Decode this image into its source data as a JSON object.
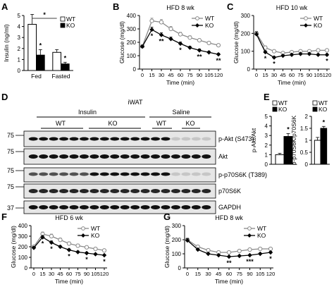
{
  "chart_data": [
    {
      "panel": "A",
      "type": "bar",
      "ylabel": "Insulin (ng/ml)",
      "ylim": [
        0,
        5
      ],
      "yticks": [
        0,
        1,
        2,
        3,
        4,
        5
      ],
      "categories": [
        "Fed",
        "Fasted"
      ],
      "series": [
        {
          "name": "WT",
          "values": [
            4.2,
            1.65
          ],
          "errors": [
            0.9,
            0.25
          ],
          "fill": "#ffffff"
        },
        {
          "name": "KO",
          "values": [
            1.4,
            0.6
          ],
          "errors": [
            0.5,
            0.15
          ],
          "fill": "#000000"
        }
      ],
      "annotations": [
        "*",
        "*",
        "*"
      ],
      "legend": "top-right"
    },
    {
      "panel": "B",
      "type": "line",
      "title": "HFD  8 wk",
      "xlabel": "Time (min)",
      "ylabel": "Glucose (mg/dl)",
      "x": [
        0,
        15,
        30,
        45,
        60,
        75,
        90,
        105,
        120
      ],
      "xticks": [
        "0",
        "15",
        "30",
        "45",
        "60",
        "75",
        "90",
        "105",
        "120"
      ],
      "ylim": [
        0,
        400
      ],
      "yticks": [
        0,
        100,
        200,
        300,
        400
      ],
      "series": [
        {
          "name": "WT",
          "values": [
            170,
            360,
            350,
            300,
            260,
            235,
            215,
            195,
            178
          ],
          "errors": [
            10,
            20,
            20,
            18,
            15,
            14,
            12,
            10,
            10
          ],
          "marker": "circle-open"
        },
        {
          "name": "KO",
          "values": [
            168,
            295,
            255,
            225,
            190,
            160,
            140,
            125,
            110
          ],
          "errors": [
            10,
            18,
            16,
            14,
            12,
            11,
            10,
            9,
            8
          ],
          "marker": "diamond"
        }
      ],
      "annotations": [
        "*",
        "**",
        "*",
        "**",
        "**"
      ],
      "legend": "top-right"
    },
    {
      "panel": "C",
      "type": "line",
      "title": "HFD 10 wk",
      "xlabel": "Time (min)",
      "ylabel": "Glucose (mg/dl)",
      "x": [
        0,
        15,
        30,
        45,
        60,
        75,
        90,
        105,
        120
      ],
      "xticks": [
        "0",
        "15",
        "30",
        "45",
        "60",
        "75",
        "90",
        "105",
        "120"
      ],
      "ylim": [
        0,
        300
      ],
      "yticks": [
        0,
        100,
        200,
        300
      ],
      "series": [
        {
          "name": "WT",
          "values": [
            200,
            120,
            100,
            90,
            95,
            100,
            100,
            105,
            105
          ],
          "errors": [
            12,
            10,
            8,
            7,
            7,
            7,
            7,
            7,
            7
          ],
          "marker": "circle-open"
        },
        {
          "name": "KO",
          "values": [
            195,
            95,
            65,
            75,
            80,
            85,
            85,
            80,
            80
          ],
          "errors": [
            12,
            8,
            6,
            6,
            6,
            6,
            6,
            6,
            6
          ],
          "marker": "diamond"
        }
      ],
      "annotations": [
        "*",
        "*",
        "*"
      ],
      "legend": "top-right"
    },
    {
      "panel": "E",
      "type": "bar",
      "ylabel": "p-Akt/Akt",
      "ylim": [
        0,
        5
      ],
      "yticks": [
        0,
        1,
        2,
        3,
        4,
        5
      ],
      "series": [
        {
          "name": "WT",
          "values": [
            1.0
          ],
          "errors": [
            0.15
          ],
          "fill": "#ffffff"
        },
        {
          "name": "KO",
          "values": [
            2.9
          ],
          "errors": [
            0.3
          ],
          "fill": "#000000"
        }
      ],
      "annotations": [
        "*"
      ],
      "legend": "top"
    },
    {
      "panel": "E2",
      "type": "bar",
      "ylabel": "p-p70S6K/p70S6K",
      "ylim": [
        0,
        2
      ],
      "yticks": [
        0,
        0.5,
        1,
        1.5,
        2
      ],
      "yticklabels": [
        "0",
        "0.5",
        "1",
        "1.5",
        "2"
      ],
      "series": [
        {
          "name": "WT",
          "values": [
            1.0
          ],
          "errors": [
            0.12
          ],
          "fill": "#ffffff"
        },
        {
          "name": "KO",
          "values": [
            1.5
          ],
          "errors": [
            0.08
          ],
          "fill": "#000000"
        }
      ],
      "annotations": [
        "*"
      ],
      "legend": "top"
    },
    {
      "panel": "F",
      "type": "line",
      "title": "HFD 6 wk",
      "xlabel": "Time (min)",
      "ylabel": "Glucose (mg/dl)",
      "x": [
        0,
        15,
        30,
        45,
        60,
        75,
        90,
        105,
        120
      ],
      "xticks": [
        "0",
        "15",
        "30",
        "45",
        "60",
        "75",
        "90",
        "105",
        "120"
      ],
      "ylim": [
        0,
        400
      ],
      "yticks": [
        0,
        100,
        200,
        300,
        400
      ],
      "series": [
        {
          "name": "WT",
          "values": [
            200,
            320,
            300,
            265,
            230,
            210,
            195,
            180,
            165
          ],
          "errors": [
            15,
            20,
            20,
            18,
            16,
            15,
            14,
            12,
            12
          ],
          "marker": "circle-open"
        },
        {
          "name": "KO",
          "values": [
            190,
            290,
            240,
            200,
            170,
            150,
            140,
            130,
            120
          ],
          "errors": [
            12,
            18,
            15,
            12,
            11,
            10,
            9,
            8,
            8
          ],
          "marker": "diamond"
        }
      ],
      "annotations": [
        "*",
        "*",
        "*",
        "*",
        "*"
      ],
      "legend": "top-right"
    },
    {
      "panel": "G",
      "type": "line",
      "title": "HFD 8 wk",
      "xlabel": "Time (min)",
      "ylabel": "Glucose (mg/dl)",
      "x": [
        0,
        15,
        30,
        45,
        60,
        75,
        90,
        105,
        120
      ],
      "xticks": [
        "0",
        "15",
        "30",
        "45",
        "60",
        "75",
        "90",
        "105",
        "120"
      ],
      "ylim": [
        0,
        300
      ],
      "yticks": [
        0,
        100,
        200,
        300
      ],
      "series": [
        {
          "name": "WT",
          "values": [
            200,
            150,
            125,
            110,
            110,
            120,
            130,
            135,
            135
          ],
          "errors": [
            12,
            10,
            8,
            8,
            8,
            8,
            8,
            8,
            8
          ],
          "marker": "circle-open"
        },
        {
          "name": "KO",
          "values": [
            195,
            130,
            100,
            90,
            80,
            85,
            90,
            100,
            110
          ],
          "errors": [
            12,
            9,
            7,
            6,
            6,
            6,
            6,
            7,
            7
          ],
          "marker": "diamond"
        }
      ],
      "annotations": [
        "**",
        "***",
        "*"
      ],
      "legend": "top-right"
    }
  ],
  "panel_letters": {
    "a": "A",
    "b": "B",
    "c": "C",
    "d": "D",
    "e": "E",
    "f": "F",
    "g": "G"
  },
  "blot": {
    "tissue": "iWAT",
    "group_insulin": "Insulin",
    "group_saline": "Saline",
    "sub_wt": "WT",
    "sub_ko": "KO",
    "sub_wt2": "WT",
    "sub_ko2": "KO",
    "mw_1": "75",
    "mw_2": "75",
    "mw_3": "75",
    "mw_4": "75",
    "mw_5": "37",
    "label_pakt": "p-Akt (S473)",
    "label_akt": "Akt",
    "label_pp70": "p-p70S6K (T389)",
    "label_p70": "p70S6K",
    "label_gapdh": "GAPDH"
  }
}
